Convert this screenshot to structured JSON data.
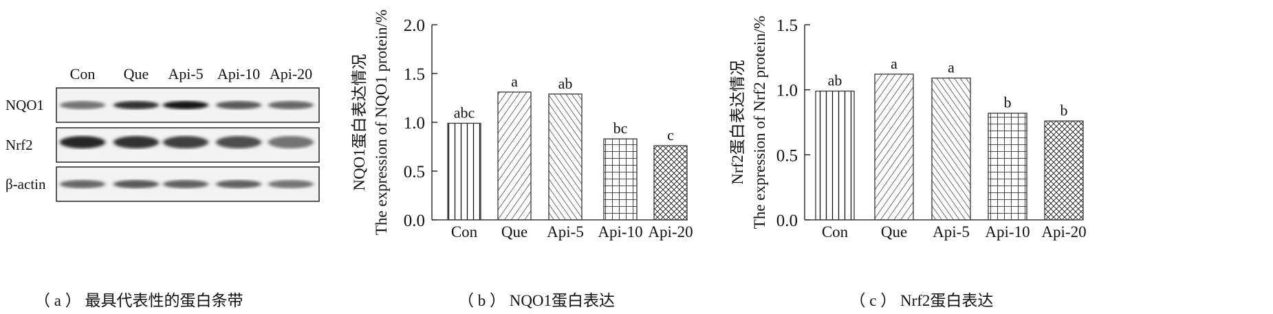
{
  "panel_a": {
    "lanes": [
      "Con",
      "Que",
      "Api-5",
      "Api-10",
      "Api-20"
    ],
    "rows": [
      {
        "label": "NQO1",
        "intensity": [
          0.55,
          0.8,
          0.9,
          0.65,
          0.6
        ]
      },
      {
        "label": "Nrf2",
        "intensity": [
          0.85,
          0.8,
          0.75,
          0.7,
          0.55
        ]
      },
      {
        "label": "β-actin",
        "intensity": [
          0.6,
          0.65,
          0.62,
          0.62,
          0.55
        ]
      }
    ],
    "caption": "（ a ） 最具代表性的蛋白条带"
  },
  "chart_data": [
    {
      "type": "bar",
      "title": "",
      "caption": "（ b ） NQO1蛋白表达",
      "categories": [
        "Con",
        "Que",
        "Api-5",
        "Api-10",
        "Api-20"
      ],
      "values": [
        0.99,
        1.31,
        1.29,
        0.83,
        0.76
      ],
      "significance_labels": [
        "abc",
        "a",
        "ab",
        "bc",
        "c"
      ],
      "ylabel_cn": "NQO1蛋白表达情况",
      "ylabel_en": "The expression of NQO1 protein/%",
      "xlabel": "",
      "ylim": [
        0,
        2.0
      ],
      "yticks": [
        "0.0",
        "0.5",
        "1.0",
        "1.5",
        "2.0"
      ],
      "grid": false
    },
    {
      "type": "bar",
      "title": "",
      "caption": "（ c ） Nrf2蛋白表达",
      "categories": [
        "Con",
        "Que",
        "Api-5",
        "Api-10",
        "Api-20"
      ],
      "values": [
        0.99,
        1.12,
        1.09,
        0.82,
        0.76
      ],
      "significance_labels": [
        "ab",
        "a",
        "a",
        "b",
        "b"
      ],
      "ylabel_cn": "Nrf2蛋白表达情况",
      "ylabel_en": "The expression of Nrf2 protein/%",
      "xlabel": "",
      "ylim": [
        0,
        1.5
      ],
      "yticks": [
        "0.0",
        "0.5",
        "1.0",
        "1.5"
      ],
      "grid": false
    }
  ]
}
